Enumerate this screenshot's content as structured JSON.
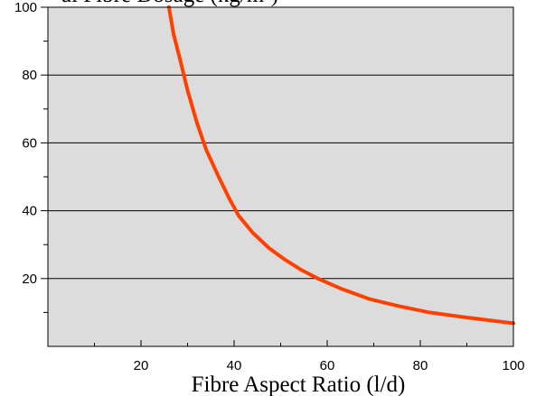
{
  "chart_data": {
    "type": "line",
    "title": "",
    "ylabel_partial": "al Fibre Dosage (kg/m³)",
    "xlabel": "Fibre Aspect Ratio (l/d)",
    "xlim": [
      0,
      100
    ],
    "ylim": [
      0,
      100
    ],
    "x_ticks": [
      20,
      40,
      60,
      80,
      100
    ],
    "x_minor_ticks": [
      10,
      30,
      50,
      70,
      90
    ],
    "y_ticks": [
      20,
      40,
      60,
      80,
      100
    ],
    "y_minor_ticks": [
      10,
      30,
      50,
      70,
      90
    ],
    "y_gridlines": [
      20,
      40,
      60,
      80
    ],
    "grid": "horizontal",
    "colors": {
      "plot_background": "#dcdcdc",
      "series": "#ff4000",
      "axis": "#000000"
    },
    "series": [
      {
        "x": [
          26,
          27,
          28.5,
          30,
          32,
          34,
          36.5,
          39,
          41,
          44,
          47.5,
          51,
          54.5,
          58,
          63,
          69,
          75,
          82,
          90,
          100
        ],
        "y": [
          100,
          92,
          84,
          75.5,
          66,
          58,
          50.5,
          43.5,
          38.5,
          33.5,
          29,
          25.5,
          22.5,
          20,
          17,
          14,
          12,
          10,
          8.5,
          6.8
        ]
      }
    ]
  }
}
